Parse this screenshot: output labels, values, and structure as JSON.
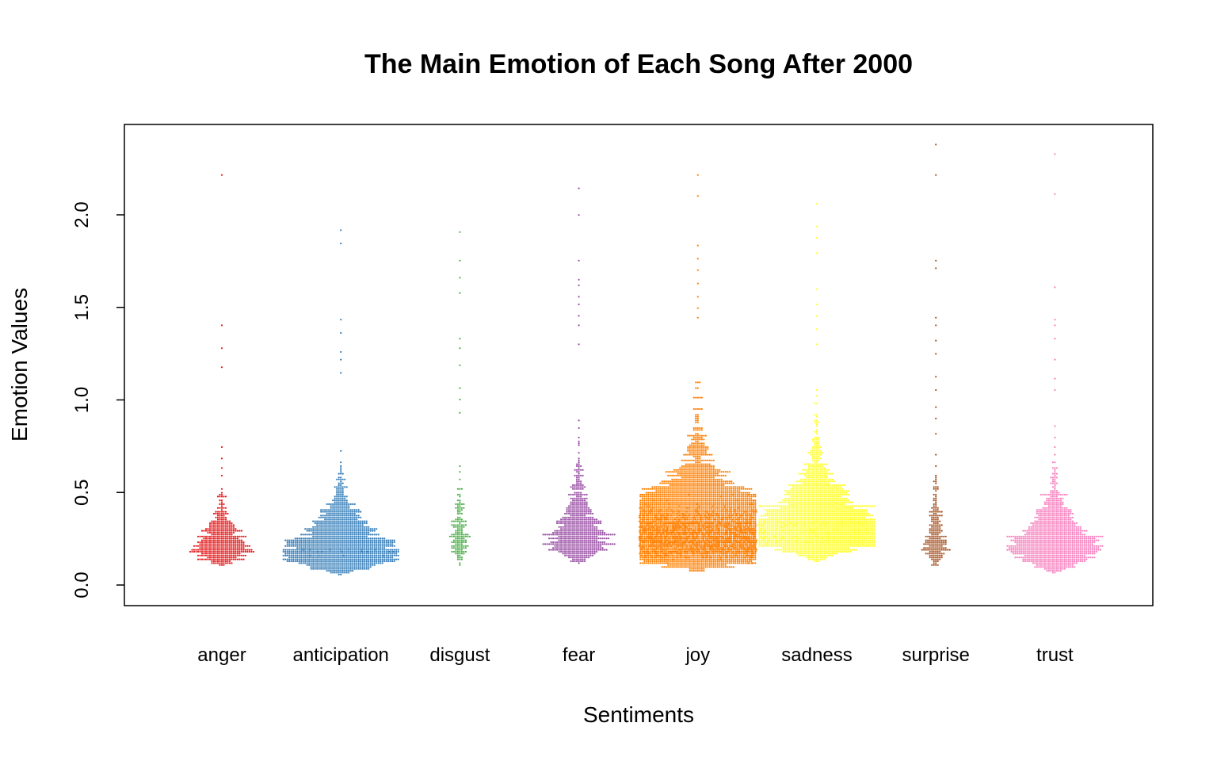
{
  "chart_data": {
    "type": "scatter",
    "subtype": "beeswarm",
    "title": "The Main Emotion of Each Song After 2000",
    "xlabel": "Sentiments",
    "ylabel": "Emotion Values",
    "ylim": [
      -0.1,
      2.5
    ],
    "yticks": [
      "0.0",
      "0.5",
      "1.0",
      "1.5",
      "2.0"
    ],
    "grid": false,
    "legend": "none",
    "categories": [
      "anger",
      "anticipation",
      "disgust",
      "fear",
      "joy",
      "sadness",
      "surprise",
      "trust"
    ],
    "series": [
      {
        "category": "anger",
        "color": "#E41A1C",
        "count": 500,
        "min": 0.03,
        "max": 1.15,
        "mode": 0.22,
        "spread": 0.16,
        "outliers": [
          1.18,
          1.28,
          1.4,
          2.22
        ]
      },
      {
        "category": "anticipation",
        "color": "#377EB8",
        "count": 1400,
        "min": 0.01,
        "max": 1.1,
        "mode": 0.12,
        "spread": 0.2,
        "outliers": [
          1.15,
          1.22,
          1.26,
          1.36,
          1.43,
          1.85,
          1.92
        ]
      },
      {
        "category": "disgust",
        "color": "#4DAF4A",
        "count": 160,
        "min": 0.02,
        "max": 0.8,
        "mode": 0.25,
        "spread": 0.2,
        "outliers": [
          0.93,
          1.0,
          1.06,
          1.19,
          1.28,
          1.33,
          1.58,
          1.66,
          1.75,
          1.91
        ]
      },
      {
        "category": "fear",
        "color": "#984EA3",
        "count": 700,
        "min": 0.04,
        "max": 1.25,
        "mode": 0.22,
        "spread": 0.22,
        "outliers": [
          1.3,
          1.4,
          1.45,
          1.52,
          1.56,
          1.62,
          1.65,
          1.75,
          2.0,
          2.14
        ]
      },
      {
        "category": "joy",
        "color": "#FF7F00",
        "count": 4600,
        "min": 0.02,
        "max": 1.4,
        "mode": 0.15,
        "spread": 0.28,
        "outliers": [
          1.44,
          1.5,
          1.56,
          1.63,
          1.7,
          1.76,
          1.83,
          2.1,
          2.22
        ]
      },
      {
        "category": "sadness",
        "color": "#FFFF33",
        "count": 2200,
        "min": 0.03,
        "max": 1.2,
        "mode": 0.3,
        "spread": 0.25,
        "outliers": [
          1.3,
          1.38,
          1.45,
          1.52,
          1.6,
          1.79,
          1.88,
          1.94,
          2.06
        ]
      },
      {
        "category": "surprise",
        "color": "#A65628",
        "count": 230,
        "min": 0.02,
        "max": 0.75,
        "mode": 0.2,
        "spread": 0.2,
        "outliers": [
          0.82,
          0.9,
          0.96,
          1.05,
          1.13,
          1.25,
          1.32,
          1.4,
          1.44,
          1.71,
          1.75,
          2.22,
          2.38
        ]
      },
      {
        "category": "trust",
        "color": "#F781BF",
        "count": 1100,
        "min": 0.03,
        "max": 0.97,
        "mode": 0.1,
        "spread": 0.22,
        "outliers": [
          1.05,
          1.12,
          1.22,
          1.33,
          1.4,
          1.43,
          1.61,
          2.11,
          2.33
        ]
      }
    ]
  }
}
